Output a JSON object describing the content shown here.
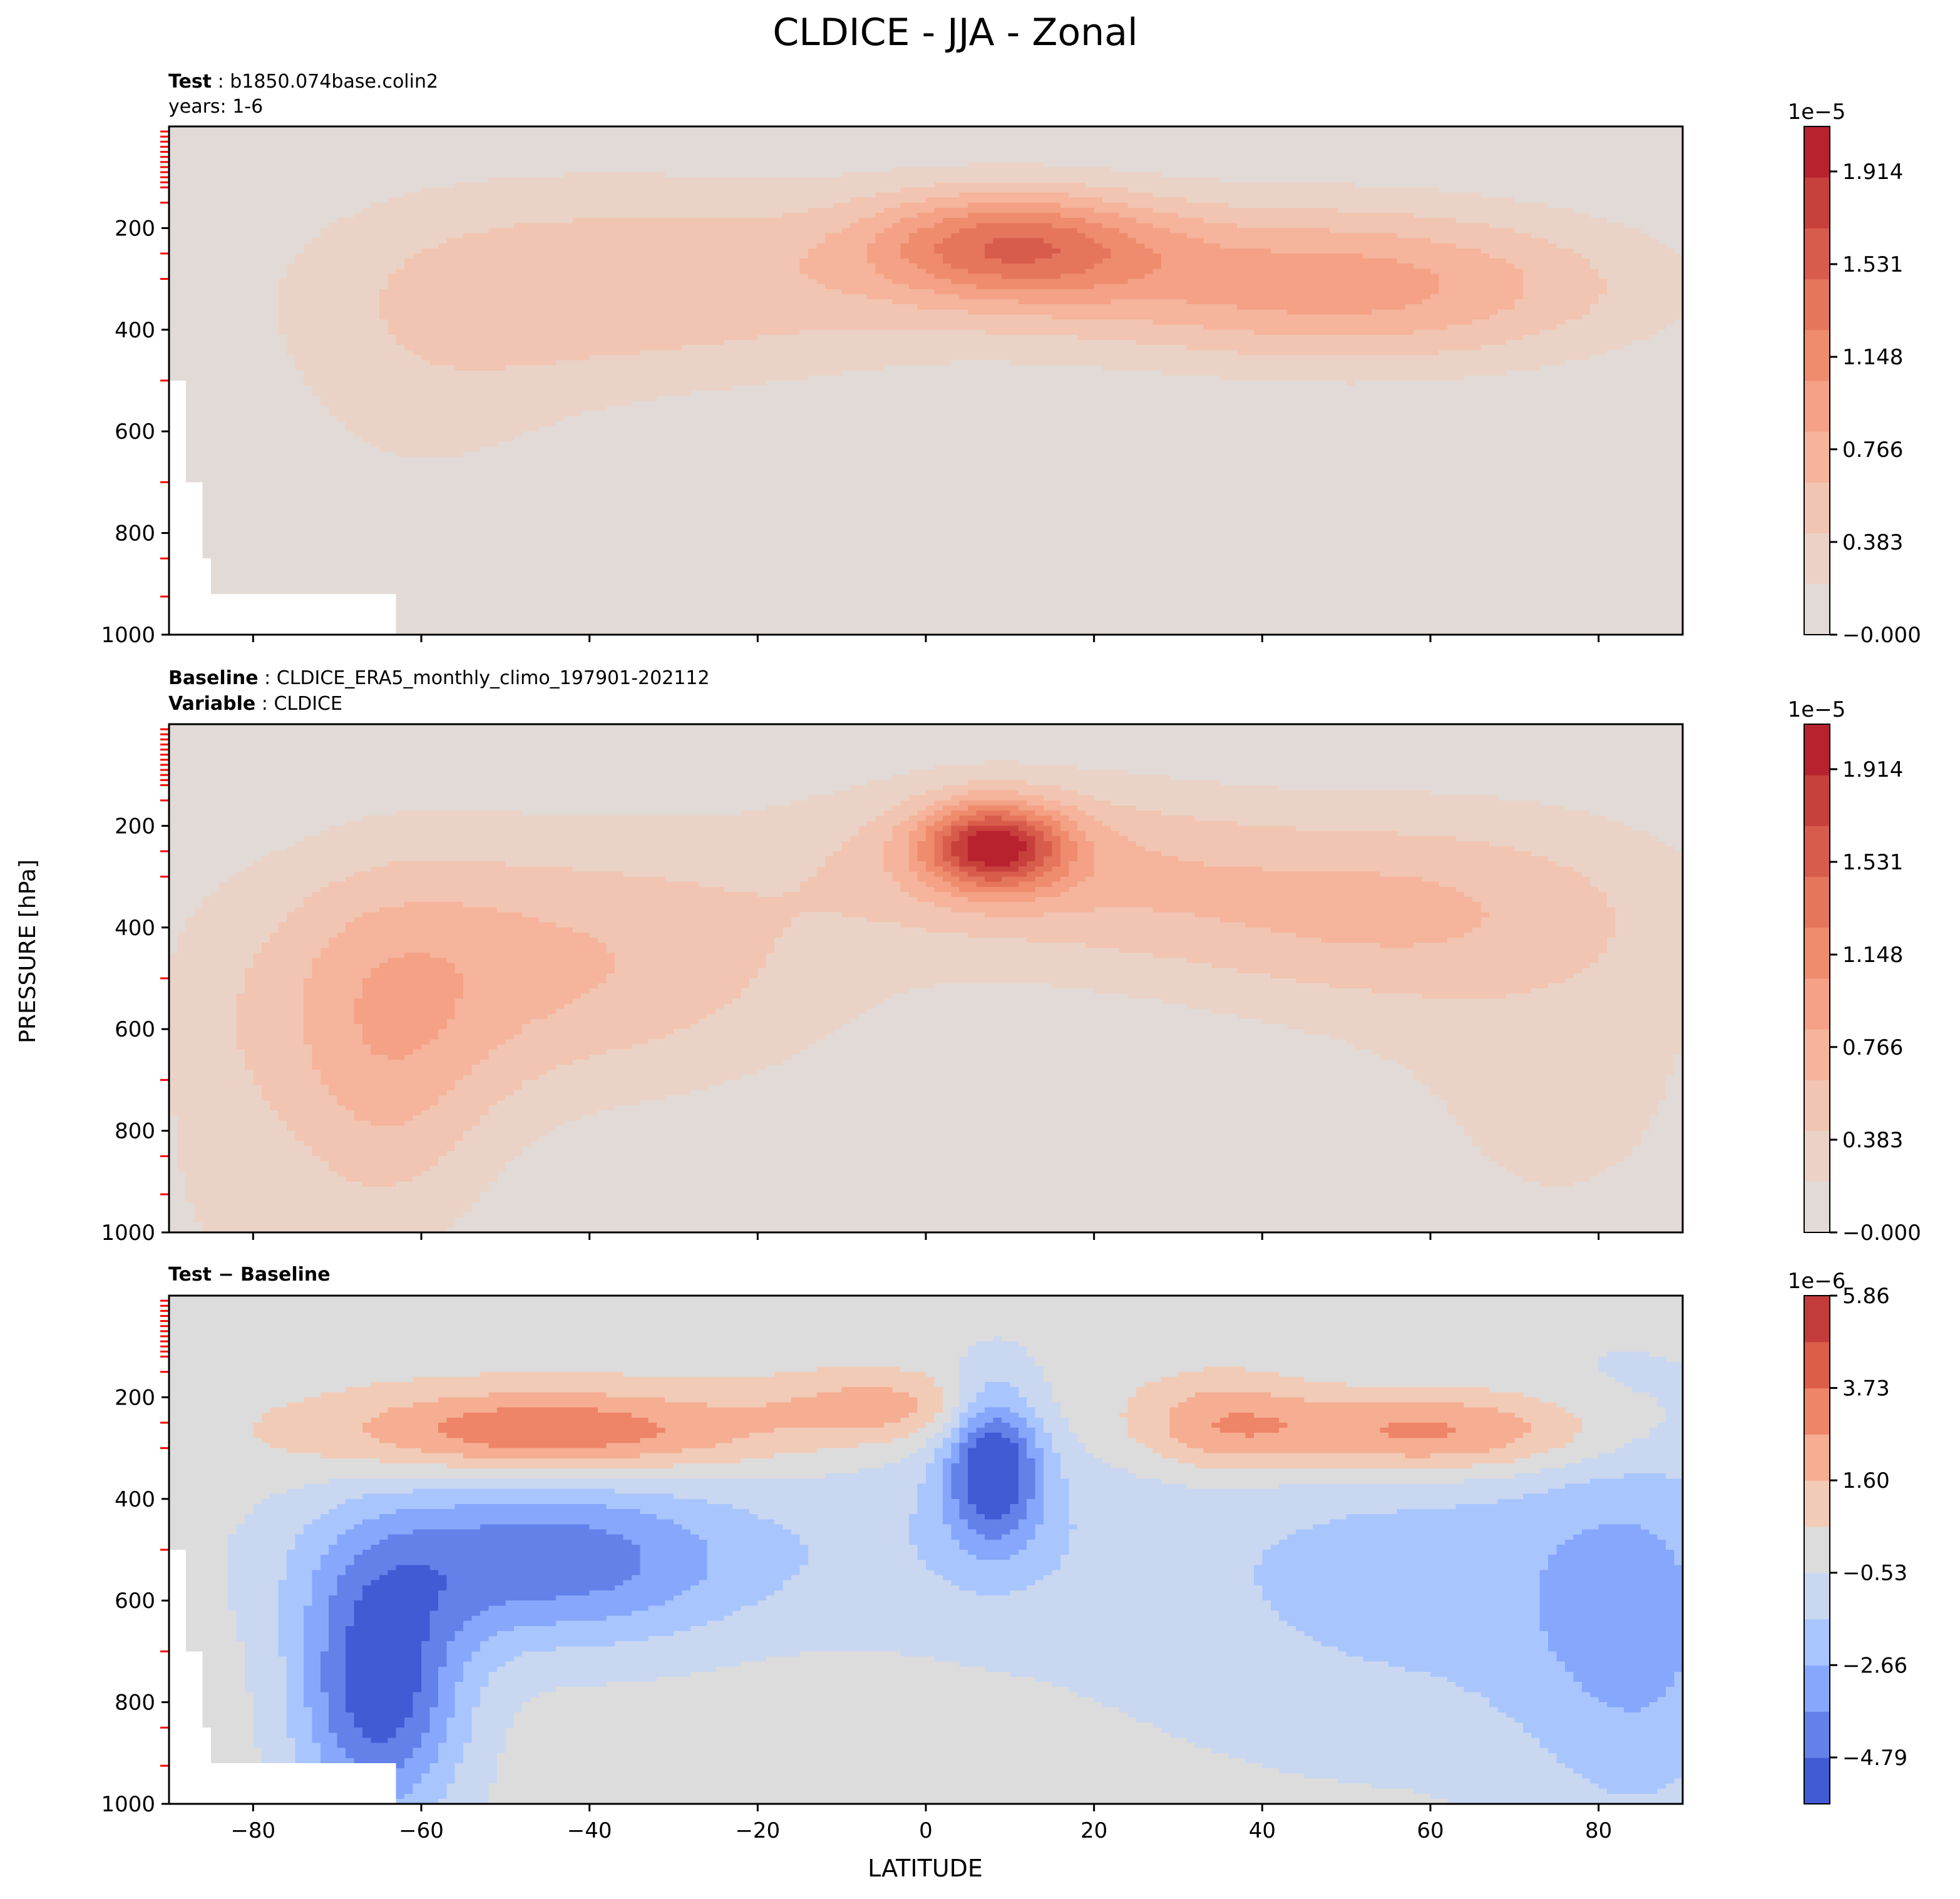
{
  "figure": {
    "title": "CLDICE - JJA - Zonal",
    "ylabel": "PRESSURE [hPa]",
    "xlabel": "LATITUDE"
  },
  "panels": [
    {
      "id": "test",
      "info": [
        {
          "label": "Test",
          "sep": " : ",
          "value": "b1850.074base.colin2"
        },
        {
          "label": "",
          "sep": "",
          "value": "years: 1-6"
        }
      ]
    },
    {
      "id": "baseline",
      "info": [
        {
          "label": "Baseline",
          "sep": " : ",
          "value": "CLDICE_ERA5_monthly_climo_197901-202112"
        },
        {
          "label": "Variable",
          "sep": " : ",
          "value": "CLDICE"
        }
      ]
    },
    {
      "id": "diff",
      "info": [
        {
          "label": "Test − Baseline",
          "sep": "",
          "value": ""
        }
      ]
    }
  ],
  "colors": {
    "background_neutral_test": "#e1dad6",
    "background_neutral_diff": "#dcdcdc",
    "level_marker": "#ff0000",
    "warm_levels": [
      "#e1dad6",
      "#ead3c6",
      "#f1c5b1",
      "#f5b49b",
      "#f4a185",
      "#ef8c6e",
      "#e5755d",
      "#d85c4b",
      "#c8403c",
      "#b8222f"
    ],
    "diff_levels": [
      "#3f5cd4",
      "#6282ea",
      "#86a7fb",
      "#a9c5fe",
      "#c9d7f0",
      "#dcdcdc",
      "#f2cbb7",
      "#f5ae92",
      "#ee8468",
      "#dc5d4a",
      "#c43b3c"
    ]
  },
  "chart_data": [
    {
      "type": "contour",
      "panel": "test",
      "x_label": "",
      "y_label": "PRESSURE [hPa]",
      "xlim": [
        -90,
        90
      ],
      "ylim": [
        1000,
        0
      ],
      "y_ticks": [
        200,
        400,
        600,
        800,
        1000
      ],
      "x_ticks": [
        -80,
        -60,
        -40,
        -20,
        0,
        20,
        40,
        60,
        80
      ],
      "x_tick_labels_visible": false,
      "colorbar": {
        "scale_label": "1e−5",
        "min": 0.0,
        "max": 2.1,
        "tick_values": [
          0.0,
          0.383,
          0.766,
          1.148,
          1.531,
          1.914
        ],
        "tick_labels": [
          "−0.000",
          "0.383",
          "0.766",
          "1.148",
          "1.531",
          "1.914"
        ]
      },
      "blobs": [
        {
          "lat": -35,
          "p": 310,
          "slat": 25,
          "sp": 150,
          "amp": 0.55
        },
        {
          "lat": -60,
          "p": 520,
          "slat": 14,
          "sp": 230,
          "amp": 0.22
        },
        {
          "lat": 10,
          "p": 230,
          "slat": 12,
          "sp": 75,
          "amp": 1.05
        },
        {
          "lat": 35,
          "p": 290,
          "slat": 30,
          "sp": 110,
          "amp": 0.55
        },
        {
          "lat": 55,
          "p": 330,
          "slat": 22,
          "sp": 110,
          "amp": 0.5
        }
      ],
      "missing_regions": [
        {
          "lat_max": -88,
          "p_min": 500
        },
        {
          "lat_max": -86,
          "p_min": 700
        },
        {
          "lat_max": -85,
          "p_min": 850
        },
        {
          "lat_max": -63,
          "p_min": 925
        }
      ]
    },
    {
      "type": "contour",
      "panel": "baseline",
      "x_label": "",
      "y_label": "PRESSURE [hPa]",
      "xlim": [
        -90,
        90
      ],
      "ylim": [
        1000,
        0
      ],
      "y_ticks": [
        200,
        400,
        600,
        800,
        1000
      ],
      "x_ticks": [
        -80,
        -60,
        -40,
        -20,
        0,
        20,
        40,
        60,
        80
      ],
      "x_tick_labels_visible": false,
      "colorbar": {
        "scale_label": "1e−5",
        "min": 0.0,
        "max": 2.1,
        "tick_values": [
          0.0,
          0.383,
          0.766,
          1.148,
          1.531,
          1.914
        ],
        "tick_labels": [
          "−0.000",
          "0.383",
          "0.766",
          "1.148",
          "1.531",
          "1.914"
        ]
      },
      "blobs": [
        {
          "lat": -45,
          "p": 470,
          "slat": 25,
          "sp": 190,
          "amp": 0.65
        },
        {
          "lat": -65,
          "p": 700,
          "slat": 10,
          "sp": 250,
          "amp": 0.55
        },
        {
          "lat": 8,
          "p": 240,
          "slat": 6,
          "sp": 60,
          "amp": 1.5
        },
        {
          "lat": 10,
          "p": 260,
          "slat": 18,
          "sp": 120,
          "amp": 0.5
        },
        {
          "lat": 50,
          "p": 360,
          "slat": 25,
          "sp": 140,
          "amp": 0.6
        },
        {
          "lat": 75,
          "p": 700,
          "slat": 20,
          "sp": 350,
          "amp": 0.25
        },
        {
          "lat": -85,
          "p": 850,
          "slat": 6,
          "sp": 300,
          "amp": 0.2
        }
      ],
      "missing_regions": []
    },
    {
      "type": "contour",
      "panel": "diff",
      "x_label": "LATITUDE",
      "y_label": "PRESSURE [hPa]",
      "xlim": [
        -90,
        90
      ],
      "ylim": [
        1000,
        0
      ],
      "y_ticks": [
        200,
        400,
        600,
        800,
        1000
      ],
      "x_ticks": [
        -80,
        -60,
        -40,
        -20,
        0,
        20,
        40,
        60,
        80
      ],
      "x_tick_labels": [
        "−80",
        "−60",
        "−40",
        "−20",
        "0",
        "20",
        "40",
        "60",
        "80"
      ],
      "x_tick_labels_visible": true,
      "colorbar": {
        "scale_label": "1e−6",
        "min": -5.86,
        "max": 5.86,
        "tick_values": [
          5.86,
          3.73,
          1.6,
          -0.53,
          -2.66,
          -4.79
        ],
        "tick_labels": [
          "5.86",
          "3.73",
          "1.60",
          "−0.53",
          "−2.66",
          "−4.79"
        ]
      },
      "blobs": [
        {
          "lat": -45,
          "p": 270,
          "slat": 18,
          "sp": 60,
          "amp": 4.0
        },
        {
          "lat": -5,
          "p": 220,
          "slat": 10,
          "sp": 50,
          "amp": 2.2
        },
        {
          "lat": 35,
          "p": 250,
          "slat": 8,
          "sp": 70,
          "amp": 2.5
        },
        {
          "lat": 60,
          "p": 270,
          "slat": 15,
          "sp": 60,
          "amp": 3.8
        },
        {
          "lat": 8,
          "p": 330,
          "slat": 4,
          "sp": 110,
          "amp": -5.5
        },
        {
          "lat": -45,
          "p": 520,
          "slat": 18,
          "sp": 120,
          "amp": -4.5
        },
        {
          "lat": -65,
          "p": 780,
          "slat": 7,
          "sp": 180,
          "amp": -5.5
        },
        {
          "lat": 5,
          "p": 470,
          "slat": 15,
          "sp": 150,
          "amp": -1.2
        },
        {
          "lat": 60,
          "p": 560,
          "slat": 28,
          "sp": 250,
          "amp": -2.0
        },
        {
          "lat": 85,
          "p": 700,
          "slat": 10,
          "sp": 300,
          "amp": -2.0
        }
      ],
      "missing_regions": [
        {
          "lat_max": -88,
          "p_min": 500
        },
        {
          "lat_max": -86,
          "p_min": 700
        },
        {
          "lat_max": -85,
          "p_min": 850
        },
        {
          "lat_max": -63,
          "p_min": 925
        }
      ]
    }
  ]
}
